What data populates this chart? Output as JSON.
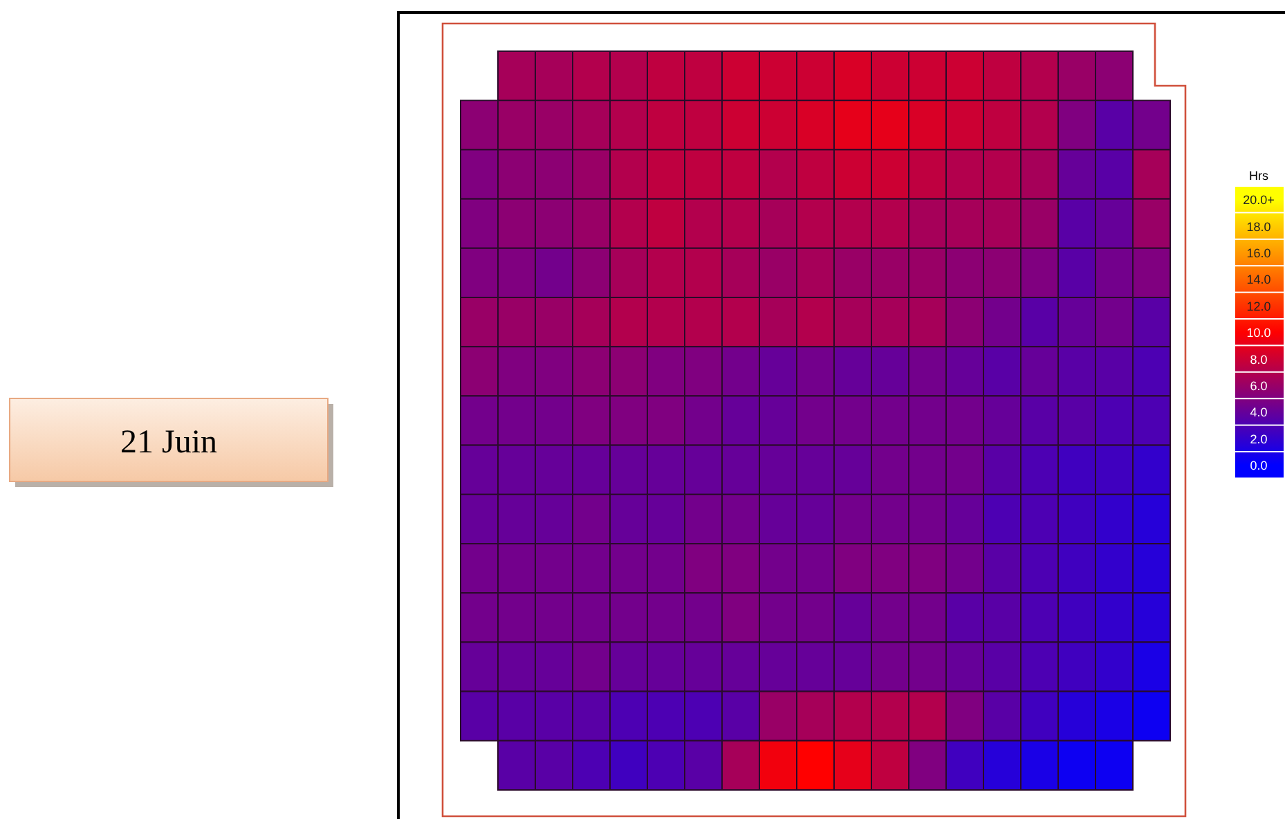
{
  "chart_data": {
    "type": "heatmap",
    "title": "21 Juin",
    "clabel": "Hrs",
    "categories": [
      null,
      null,
      null,
      null,
      null,
      null,
      null,
      null,
      null,
      null,
      null,
      null,
      null,
      null,
      null,
      null,
      null,
      null,
      null
    ],
    "y_categories": [
      null,
      null,
      null,
      null,
      null,
      null,
      null,
      null,
      null,
      null,
      null,
      null,
      null,
      null,
      null
    ],
    "cells": [
      [
        null,
        6.5,
        6.5,
        7,
        7,
        7.5,
        7.5,
        8,
        8,
        8,
        8.5,
        8,
        8,
        8,
        7.5,
        7,
        6,
        5.5,
        null
      ],
      [
        5.5,
        6,
        6,
        6.5,
        7,
        7.5,
        7.5,
        8,
        8,
        8.5,
        9,
        9,
        8.5,
        8,
        7.5,
        7,
        5,
        3.5,
        4.5
      ],
      [
        5,
        5.5,
        5.5,
        6,
        7,
        7.5,
        7.5,
        7.5,
        7,
        7.5,
        8,
        8,
        7.5,
        7,
        7,
        6.5,
        4,
        3.5,
        6.5
      ],
      [
        5,
        5.5,
        5.5,
        6,
        7,
        7.5,
        7,
        7,
        6.5,
        7,
        7,
        7,
        6.5,
        6.5,
        6.5,
        6,
        3.5,
        4,
        6
      ],
      [
        5,
        5,
        4.5,
        5.5,
        6.5,
        7,
        7,
        6.5,
        6,
        6.5,
        6,
        6,
        6,
        5.5,
        5.5,
        5,
        3.5,
        4.5,
        5
      ],
      [
        6,
        6,
        6,
        6.5,
        7,
        7,
        7,
        7,
        6.5,
        7,
        6.5,
        6.5,
        6.5,
        5.5,
        4.5,
        3.5,
        4,
        4.5,
        3.5
      ],
      [
        5.5,
        5,
        5,
        5.5,
        5.5,
        5,
        5,
        4.5,
        4,
        4.5,
        4,
        4,
        4.5,
        4,
        3.5,
        4,
        3.5,
        3.5,
        3
      ],
      [
        4.5,
        4.5,
        4.5,
        5,
        5,
        5,
        4.5,
        4,
        4,
        4.5,
        4.5,
        4.5,
        4.5,
        4.5,
        4,
        3.5,
        3.5,
        3,
        3
      ],
      [
        4,
        4,
        4,
        4,
        4,
        4,
        4,
        4,
        4,
        4,
        4,
        4.5,
        4.5,
        4.5,
        3.5,
        3,
        2.5,
        2.5,
        2
      ],
      [
        4,
        4,
        4,
        4.5,
        4,
        4,
        4.5,
        4.5,
        4,
        4,
        4.5,
        4.5,
        4.5,
        4,
        3,
        3,
        2.5,
        2,
        1.5
      ],
      [
        4.5,
        4.5,
        4.5,
        4.5,
        4.5,
        4.5,
        5,
        5,
        4.5,
        4.5,
        5,
        5,
        5,
        4.5,
        3.5,
        3,
        2.5,
        2,
        1.5
      ],
      [
        4.5,
        4.5,
        4.5,
        4.5,
        4.5,
        4.5,
        4.5,
        5,
        4.5,
        4.5,
        4,
        4.5,
        4.5,
        3.5,
        3.5,
        3,
        2.5,
        2,
        1.5
      ],
      [
        4,
        4,
        4,
        4.5,
        4,
        4,
        4,
        4,
        4,
        4,
        4,
        4.5,
        4.5,
        4,
        3.5,
        3,
        2.5,
        2,
        1
      ],
      [
        3.5,
        3.5,
        3.5,
        3.5,
        3,
        3,
        3,
        3.5,
        6,
        6.5,
        7,
        7,
        7,
        5,
        3.5,
        2.5,
        1.5,
        1,
        0.5
      ],
      [
        null,
        3.5,
        3.5,
        3,
        2.5,
        3,
        3.5,
        6.5,
        9.5,
        10,
        9,
        7.5,
        5,
        2.5,
        1.5,
        1,
        0.5,
        0.5,
        null
      ]
    ],
    "clim": [
      0,
      20
    ],
    "cticks": [
      {
        "value": 0,
        "label": "0.0"
      },
      {
        "value": 2,
        "label": "2.0"
      },
      {
        "value": 4,
        "label": "4.0"
      },
      {
        "value": 6,
        "label": "6.0"
      },
      {
        "value": 8,
        "label": "8.0"
      },
      {
        "value": 10,
        "label": "10.0"
      },
      {
        "value": 12,
        "label": "12.0"
      },
      {
        "value": 14,
        "label": "14.0"
      },
      {
        "value": 16,
        "label": "16.0"
      },
      {
        "value": 18,
        "label": "18.0"
      },
      {
        "value": 20,
        "label": "20.0+"
      }
    ]
  }
}
